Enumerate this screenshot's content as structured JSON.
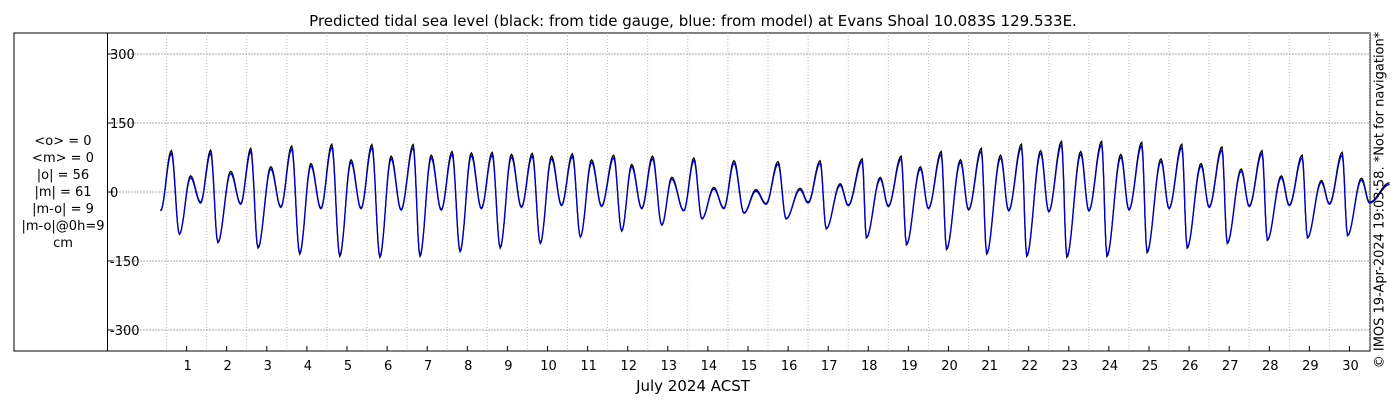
{
  "chart_data": {
    "type": "line",
    "title": "Predicted tidal sea level (black: from tide gauge, blue: from model) at Evans Shoal 10.083S 129.533E.",
    "xlabel": "July 2024 ACST",
    "ylabel": "",
    "xlim": [
      0.32,
      31.0
    ],
    "ylim": [
      -320,
      320
    ],
    "yticks": [
      300,
      150,
      0,
      -150,
      -300
    ],
    "ytick_labels": [
      "300",
      "150",
      "0",
      "-150",
      "-300"
    ],
    "xticks": [
      1,
      2,
      3,
      4,
      5,
      6,
      7,
      8,
      9,
      10,
      11,
      12,
      13,
      14,
      15,
      16,
      17,
      18,
      19,
      20,
      21,
      22,
      23,
      24,
      25,
      26,
      27,
      28,
      29,
      30
    ],
    "xtick_labels": [
      "1",
      "2",
      "3",
      "4",
      "5",
      "6",
      "7",
      "8",
      "9",
      "10",
      "11",
      "12",
      "13",
      "14",
      "15",
      "16",
      "17",
      "18",
      "19",
      "20",
      "21",
      "22",
      "23",
      "24",
      "25",
      "26",
      "27",
      "28",
      "29",
      "30"
    ],
    "grid": true,
    "series_colors": {
      "gauge": "#000000",
      "model": "#0000cc"
    },
    "highs": [
      [
        0.62,
        90
      ],
      [
        1.6,
        91
      ],
      [
        2.6,
        95
      ],
      [
        3.62,
        100
      ],
      [
        4.62,
        104
      ],
      [
        5.62,
        103
      ],
      [
        6.65,
        103
      ],
      [
        7.62,
        88
      ],
      [
        8.62,
        86
      ],
      [
        9.62,
        84
      ],
      [
        10.62,
        83
      ],
      [
        11.65,
        80
      ],
      [
        12.62,
        78
      ],
      [
        13.65,
        74
      ],
      [
        14.65,
        68
      ],
      [
        15.75,
        66
      ],
      [
        16.8,
        68
      ],
      [
        17.85,
        72
      ],
      [
        18.82,
        78
      ],
      [
        19.82,
        88
      ],
      [
        20.82,
        95
      ],
      [
        21.82,
        104
      ],
      [
        22.82,
        110
      ],
      [
        23.82,
        110
      ],
      [
        24.82,
        108
      ],
      [
        25.82,
        104
      ],
      [
        26.82,
        98
      ],
      [
        27.82,
        90
      ],
      [
        28.82,
        80
      ],
      [
        29.82,
        86
      ]
    ],
    "lows": [
      [
        0.35,
        -40
      ],
      [
        0.82,
        -92
      ],
      [
        1.78,
        -110
      ],
      [
        2.78,
        -122
      ],
      [
        3.82,
        -135
      ],
      [
        4.82,
        -140
      ],
      [
        5.82,
        -142
      ],
      [
        6.82,
        -140
      ],
      [
        7.82,
        -130
      ],
      [
        8.82,
        -122
      ],
      [
        9.82,
        -112
      ],
      [
        10.82,
        -98
      ],
      [
        11.85,
        -85
      ],
      [
        12.85,
        -72
      ],
      [
        13.85,
        -58
      ],
      [
        14.9,
        -45
      ],
      [
        15.95,
        -58
      ],
      [
        16.95,
        -80
      ],
      [
        17.95,
        -100
      ],
      [
        18.95,
        -115
      ],
      [
        19.95,
        -125
      ],
      [
        20.95,
        -135
      ],
      [
        21.95,
        -140
      ],
      [
        22.95,
        -142
      ],
      [
        23.95,
        -140
      ],
      [
        24.95,
        -132
      ],
      [
        25.95,
        -122
      ],
      [
        26.95,
        -112
      ],
      [
        27.95,
        -105
      ],
      [
        28.95,
        -100
      ],
      [
        29.95,
        -95
      ]
    ],
    "secondary_highs": [
      [
        1.1,
        35
      ],
      [
        2.1,
        45
      ],
      [
        3.1,
        55
      ],
      [
        4.1,
        62
      ],
      [
        5.1,
        70
      ],
      [
        6.1,
        78
      ],
      [
        7.1,
        80
      ],
      [
        8.1,
        85
      ],
      [
        9.1,
        82
      ],
      [
        10.1,
        78
      ],
      [
        11.1,
        70
      ],
      [
        12.1,
        60
      ],
      [
        13.1,
        32
      ],
      [
        14.15,
        10
      ],
      [
        15.2,
        5
      ],
      [
        16.3,
        8
      ],
      [
        17.3,
        18
      ],
      [
        18.3,
        32
      ],
      [
        19.3,
        55
      ],
      [
        20.3,
        70
      ],
      [
        21.3,
        80
      ],
      [
        22.3,
        90
      ],
      [
        23.3,
        88
      ],
      [
        24.3,
        82
      ],
      [
        25.3,
        72
      ],
      [
        26.3,
        62
      ],
      [
        27.3,
        50
      ],
      [
        28.3,
        35
      ],
      [
        29.3,
        25
      ],
      [
        30.3,
        30
      ]
    ],
    "secondary_lows": [
      [
        1.35,
        -22
      ],
      [
        2.35,
        -25
      ],
      [
        3.35,
        -32
      ],
      [
        4.35,
        -35
      ],
      [
        5.35,
        -35
      ],
      [
        6.35,
        -38
      ],
      [
        7.35,
        -38
      ],
      [
        8.35,
        -35
      ],
      [
        9.35,
        -32
      ],
      [
        10.35,
        -28
      ],
      [
        11.35,
        -30
      ],
      [
        12.35,
        -35
      ],
      [
        13.4,
        -40
      ],
      [
        14.4,
        -35
      ],
      [
        15.45,
        -25
      ],
      [
        16.5,
        -22
      ],
      [
        17.5,
        -28
      ],
      [
        18.5,
        -30
      ],
      [
        19.5,
        -35
      ],
      [
        20.5,
        -38
      ],
      [
        21.5,
        -40
      ],
      [
        22.5,
        -42
      ],
      [
        23.5,
        -40
      ],
      [
        24.5,
        -38
      ],
      [
        25.5,
        -35
      ],
      [
        26.5,
        -32
      ],
      [
        27.5,
        -30
      ],
      [
        28.5,
        -28
      ],
      [
        29.5,
        -25
      ],
      [
        30.5,
        -22
      ]
    ],
    "end_point": [
      31.0,
      20
    ]
  },
  "stats": {
    "lines": [
      "<o> = 0",
      "<m> = 0",
      "|o| = 56",
      "|m| = 61",
      "|m-o| = 9",
      "|m-o|@0h=9",
      "cm"
    ]
  },
  "credit": "© IMOS 19-Apr-2024 19:03:58. *Not for navigation*"
}
